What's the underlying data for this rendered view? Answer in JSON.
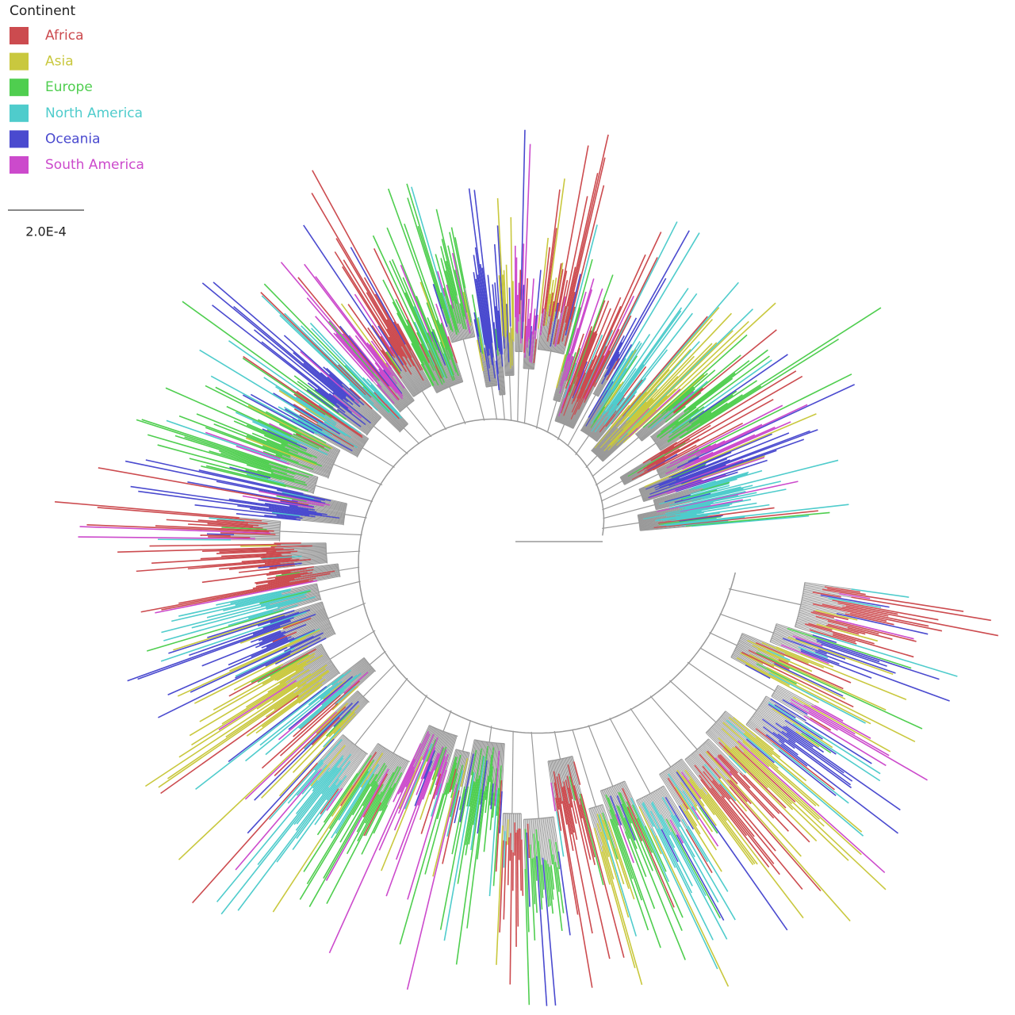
{
  "legend": {
    "title": "Continent",
    "items": [
      {
        "label": "Africa",
        "color": "#cc4b4f"
      },
      {
        "label": "Asia",
        "color": "#c9c83e"
      },
      {
        "label": "Europe",
        "color": "#4fce4f"
      },
      {
        "label": "North America",
        "color": "#4fcccc"
      },
      {
        "label": "Oceania",
        "color": "#4a4acf"
      },
      {
        "label": "South America",
        "color": "#cc4acc"
      }
    ]
  },
  "scale_bar": {
    "label": "2.0E-4"
  }
}
